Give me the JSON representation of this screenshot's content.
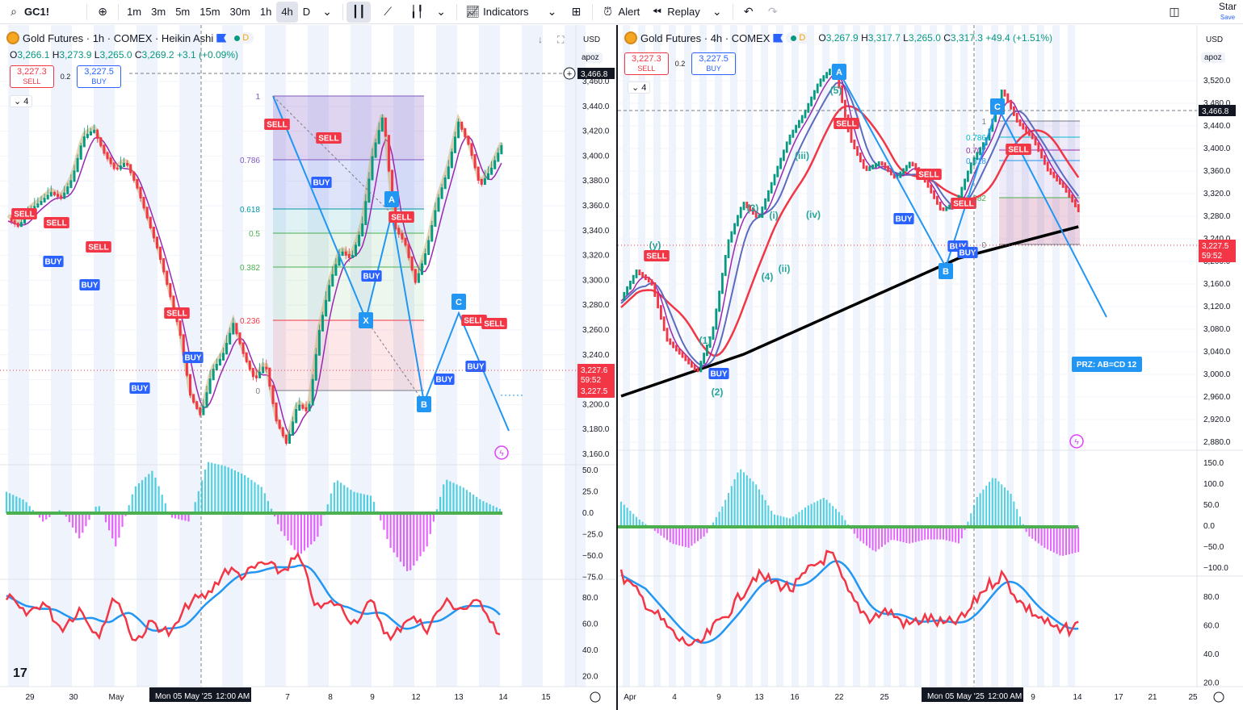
{
  "toolbar": {
    "symbol": "GC1!",
    "intervals": [
      "1m",
      "3m",
      "5m",
      "15m",
      "30m",
      "1h",
      "4h",
      "D"
    ],
    "active_interval": "4h",
    "indicators_label": "Indicators",
    "alert_label": "Alert",
    "replay_label": "Replay",
    "star_label": "Star",
    "save_label": "Save"
  },
  "left": {
    "title": "Gold Futures · 1h · COMEX · Heikin Ashi",
    "badge": "D",
    "ohlc": {
      "o": "3,266.1",
      "h": "3,273.9",
      "l": "3,265.0",
      "c": "3,269.2",
      "chg": "+3.1 (+0.09%)"
    },
    "sell_price": "3,227.3",
    "sell_label": "SELL",
    "buy_price": "3,227.5",
    "buy_label": "BUY",
    "spread": "0.2",
    "indicator_count": "4",
    "currency": "USD",
    "scale_mode": "apoz",
    "price_ticks": [
      "3,460.0",
      "3,440.0",
      "3,420.0",
      "3,400.0",
      "3,380.0",
      "3,360.0",
      "3,340.0",
      "3,320.0",
      "3,300.0",
      "3,280.0",
      "3,260.0",
      "3,240.0",
      "3,220.0",
      "3,200.0",
      "3,180.0",
      "3,160.0"
    ],
    "tag_top": "3,466.8",
    "tag_price1": "3,227.6",
    "tag_countdown": "59:52",
    "tag_price2": "3,227.5",
    "osc_ticks": [
      "50.0",
      "25.0",
      "0.0",
      "−25.0",
      "−50.0",
      "−75.0"
    ],
    "rsi_ticks": [
      "80.0",
      "60.0",
      "40.0",
      "20.0"
    ],
    "time_ticks": [
      "29",
      "30",
      "May",
      "7",
      "8",
      "9",
      "12",
      "13",
      "14",
      "15"
    ],
    "cursor_time": "Mon 05 May '25",
    "cursor_clock": "12:00 AM",
    "fib_levels": [
      "1",
      "0.786",
      "0.618",
      "0.5",
      "0.382",
      "0.236",
      "0"
    ],
    "pattern_points": [
      "A",
      "X",
      "B",
      "C"
    ],
    "signals": {
      "sell": "SELL",
      "buy": "BUY"
    }
  },
  "right": {
    "title": "Gold Futures · 4h · COMEX",
    "badge": "D",
    "ohlc": {
      "o": "3,267.9",
      "h": "3,317.7",
      "l": "3,265.0",
      "c": "3,317.3",
      "chg": "+49.4 (+1.51%)"
    },
    "sell_price": "3,227.3",
    "sell_label": "SELL",
    "buy_price": "3,227.5",
    "buy_label": "BUY",
    "spread": "0.2",
    "indicator_count": "4",
    "currency": "USD",
    "scale_mode": "apoz",
    "price_ticks": [
      "3,520.0",
      "3,480.0",
      "3,440.0",
      "3,400.0",
      "3,360.0",
      "3,320.0",
      "3,280.0",
      "3,240.0",
      "3,200.0",
      "3,160.0",
      "3,120.0",
      "3,080.0",
      "3,040.0",
      "3,000.0",
      "2,960.0",
      "2,920.0",
      "2,880.0"
    ],
    "tag_top": "3,466.8",
    "tag_price": "3,227.5",
    "tag_countdown": "59:52",
    "osc_ticks": [
      "150.0",
      "100.0",
      "50.0",
      "0.0",
      "−50.0",
      "−100.0"
    ],
    "rsi_ticks": [
      "80.0",
      "60.0",
      "40.0",
      "20.0"
    ],
    "time_ticks": [
      "Apr",
      "4",
      "9",
      "13",
      "16",
      "22",
      "25",
      "9",
      "14",
      "17",
      "21",
      "25"
    ],
    "cursor_time": "Mon 05 May '25",
    "cursor_clock": "12:00 AM",
    "fib_levels": [
      "1",
      "0.786",
      "0.707",
      "0.618",
      "0.382",
      "0"
    ],
    "wave_labels": [
      "(y)",
      "(1)",
      "(2)",
      "(3)",
      "(i)",
      "(ii)",
      "(iii)",
      "(iv)",
      "(4)",
      "(5)"
    ],
    "pattern_points": [
      "A",
      "B",
      "C"
    ],
    "prz_label": "PRZ: AB=CD 12",
    "signals": {
      "sell": "SELL",
      "buy": "BUY"
    }
  },
  "colors": {
    "up": "#089981",
    "down": "#f23645",
    "blue": "#2962ff",
    "pattern": "#2196f3",
    "hist_up": "#26c6da",
    "hist_down": "#e040fb"
  }
}
